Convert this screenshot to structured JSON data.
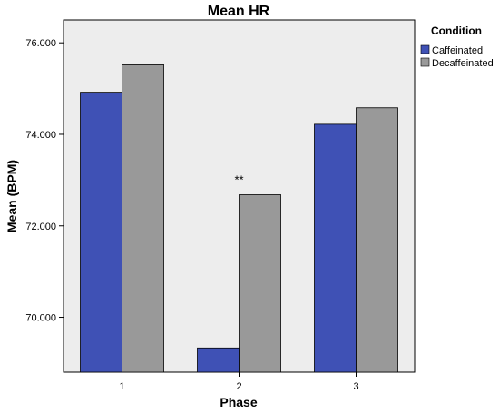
{
  "chart_data": {
    "type": "bar",
    "title": "Mean HR",
    "xlabel": "Phase",
    "ylabel": "Mean (BPM)",
    "categories": [
      "1",
      "2",
      "3"
    ],
    "series": [
      {
        "name": "Caffeinated",
        "values": [
          74.92,
          69.33,
          74.22
        ],
        "color": "#3F51B5"
      },
      {
        "name": "Decaffeinated",
        "values": [
          75.52,
          72.68,
          74.58
        ],
        "color": "#999999"
      }
    ],
    "ylim": [
      68.8,
      76.5
    ],
    "yticks": [
      70,
      72,
      74,
      76
    ],
    "ytick_labels": [
      "70.000",
      "72.000",
      "74.000",
      "76.000"
    ],
    "legend": {
      "title": "Condition",
      "placement": "top-right outside plot"
    },
    "annotation": {
      "text": "**",
      "category": "2"
    },
    "plot_background": "#EDEDED",
    "grid": false
  }
}
